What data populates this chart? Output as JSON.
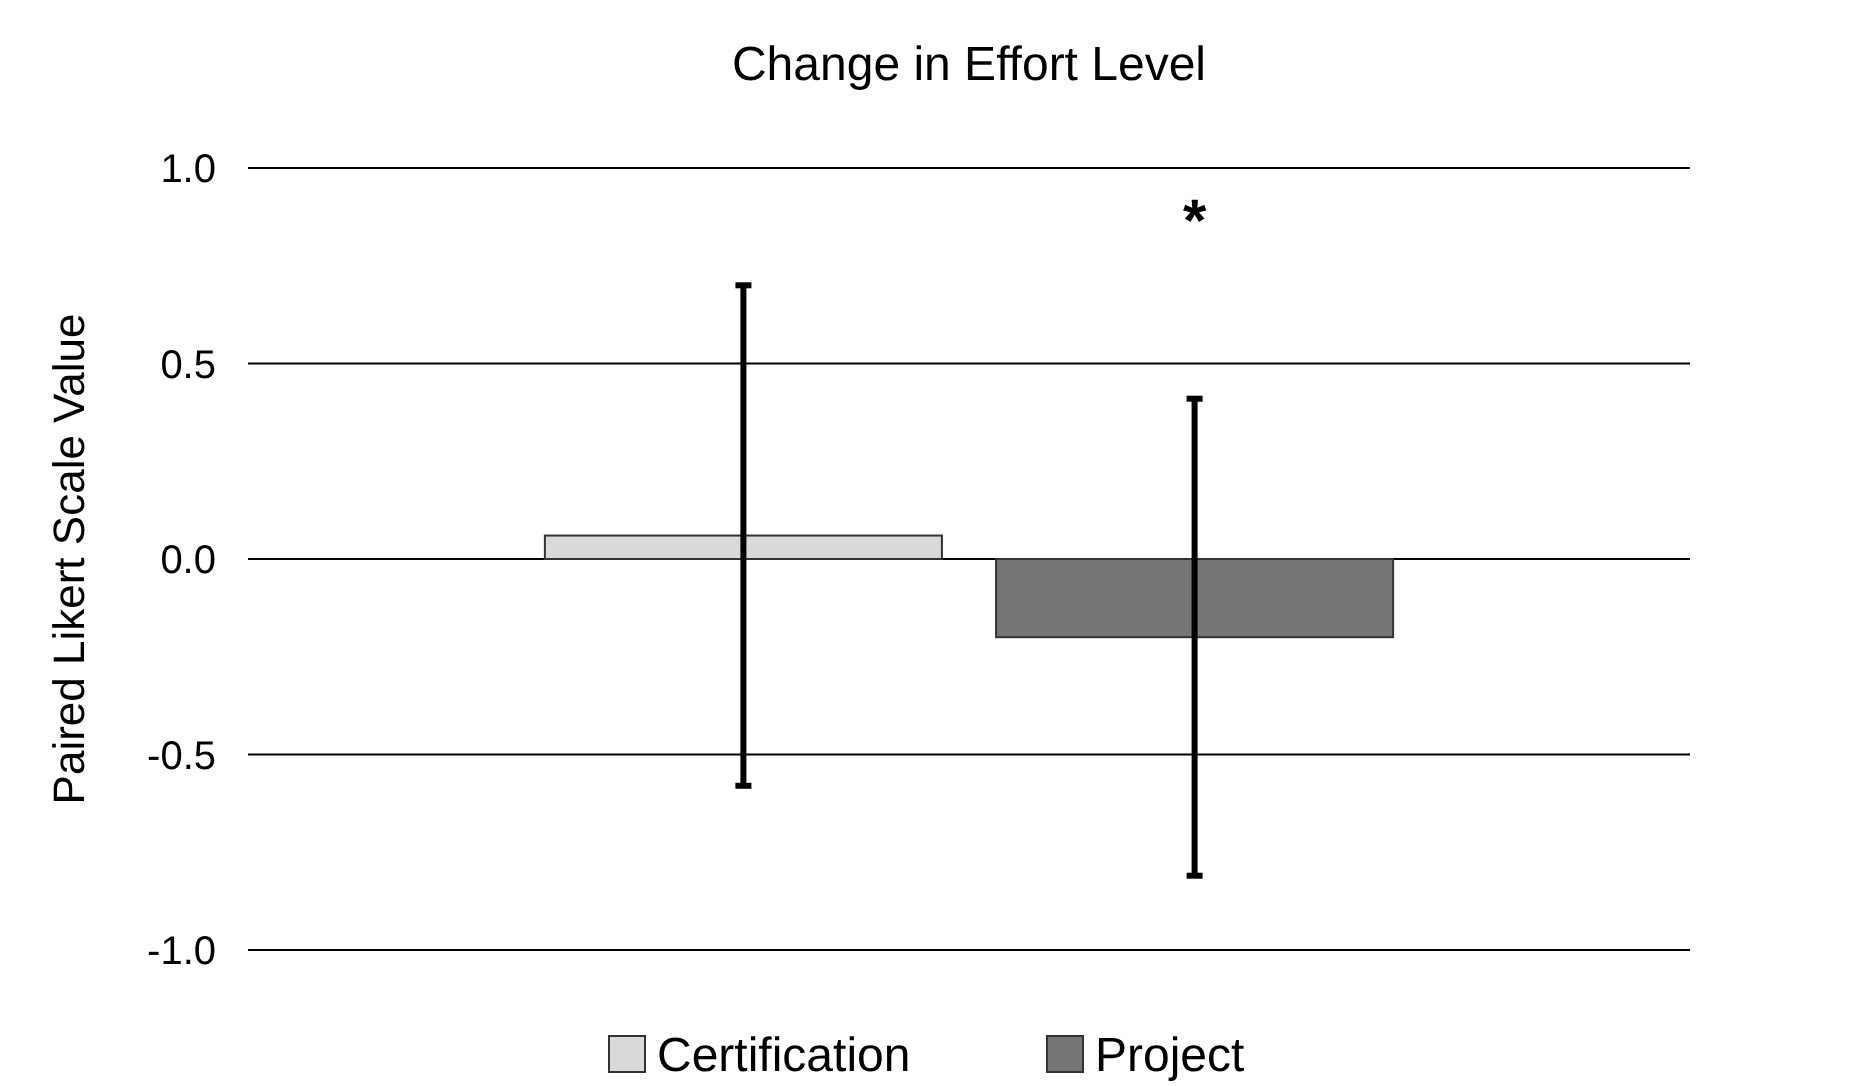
{
  "chart_data": {
    "type": "bar",
    "title": "Change in Effort Level",
    "ylabel": "Paired Likert Scale Value",
    "categories": [
      null
    ],
    "series": [
      {
        "name": "Certification",
        "color": "#d9d9d9",
        "values": [
          0.06
        ],
        "errors": [
          [
            -0.58,
            0.7
          ]
        ]
      },
      {
        "name": "Project",
        "color": "#767676",
        "values": [
          -0.2
        ],
        "errors": [
          [
            -0.81,
            0.41
          ]
        ]
      }
    ],
    "ylim": [
      -1,
      1
    ],
    "yticks": [
      {
        "value": -1,
        "label": "-1.0"
      },
      {
        "value": -0.5,
        "label": "-0.5"
      },
      {
        "value": 0,
        "label": "0.0"
      },
      {
        "value": 0.5,
        "label": "0.5"
      },
      {
        "value": 1,
        "label": "1.0"
      }
    ],
    "grid": "y",
    "legend": "bottom",
    "annotations": [
      "*"
    ]
  }
}
